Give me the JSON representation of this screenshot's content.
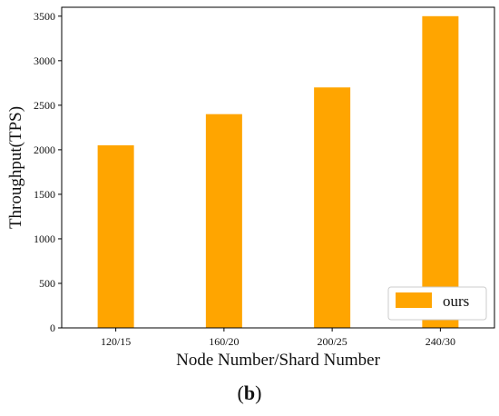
{
  "chart_data": {
    "type": "bar",
    "title": "",
    "xlabel": "Node Number/Shard Number",
    "ylabel": "Throughput(TPS)",
    "categories": [
      "120/15",
      "160/20",
      "200/25",
      "240/30"
    ],
    "series": [
      {
        "name": "ours",
        "values": [
          2050,
          2400,
          2700,
          3500
        ],
        "color": "#FFA500"
      }
    ],
    "ylim": [
      0,
      3600
    ],
    "yticks": [
      0,
      500,
      1000,
      1500,
      2000,
      2500,
      3000,
      3500
    ],
    "grid": false,
    "legend_position": "lower-right"
  },
  "figure": {
    "panel_label_open": "(",
    "panel_label_letter": "b",
    "panel_label_close": ")"
  }
}
